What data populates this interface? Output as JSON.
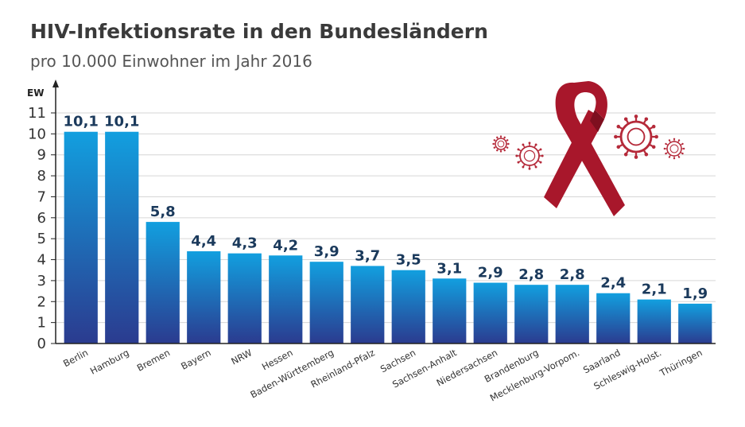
{
  "chart_data": {
    "type": "bar",
    "title": "HIV-Infektionsrate in den Bundesländern",
    "subtitle": "pro 10.000 Einwohner im Jahr 2016",
    "ylabel": "EW",
    "xlabel": "",
    "ylim": [
      0,
      11
    ],
    "yticks": [
      "0",
      "1",
      "2",
      "3",
      "4",
      "5",
      "6",
      "7",
      "8",
      "9",
      "10",
      "11"
    ],
    "grid": true,
    "categories": [
      "Berlin",
      "Hamburg",
      "Bremen",
      "Bayern",
      "NRW",
      "Hessen",
      "Baden-Württemberg",
      "Rheinland-Pfalz",
      "Sachsen",
      "Sachsen-Anhalt",
      "Niedersachsen",
      "Brandenburg",
      "Mecklenburg-Vorpom.",
      "Saarland",
      "Schleswig-Holst.",
      "Thüringen"
    ],
    "values": [
      10.1,
      10.1,
      5.8,
      4.4,
      4.3,
      4.2,
      3.9,
      3.7,
      3.5,
      3.1,
      2.9,
      2.8,
      2.8,
      2.4,
      2.1,
      1.9
    ],
    "value_labels": [
      "10,1",
      "10,1",
      "5,8",
      "4,4",
      "4,3",
      "4,2",
      "3,9",
      "3,7",
      "3,5",
      "3,1",
      "2,9",
      "2,8",
      "2,8",
      "2,4",
      "2,1",
      "1,9"
    ],
    "colors": {
      "bar_top": "#129fdf",
      "bar_bottom": "#2b3b8f",
      "value_text": "#1b3a5c",
      "ribbon": "#a8172b",
      "virus": "#b52a3a"
    },
    "decoration": {
      "ribbon": "aids-ribbon-icon",
      "virus": "virus-icon"
    }
  }
}
